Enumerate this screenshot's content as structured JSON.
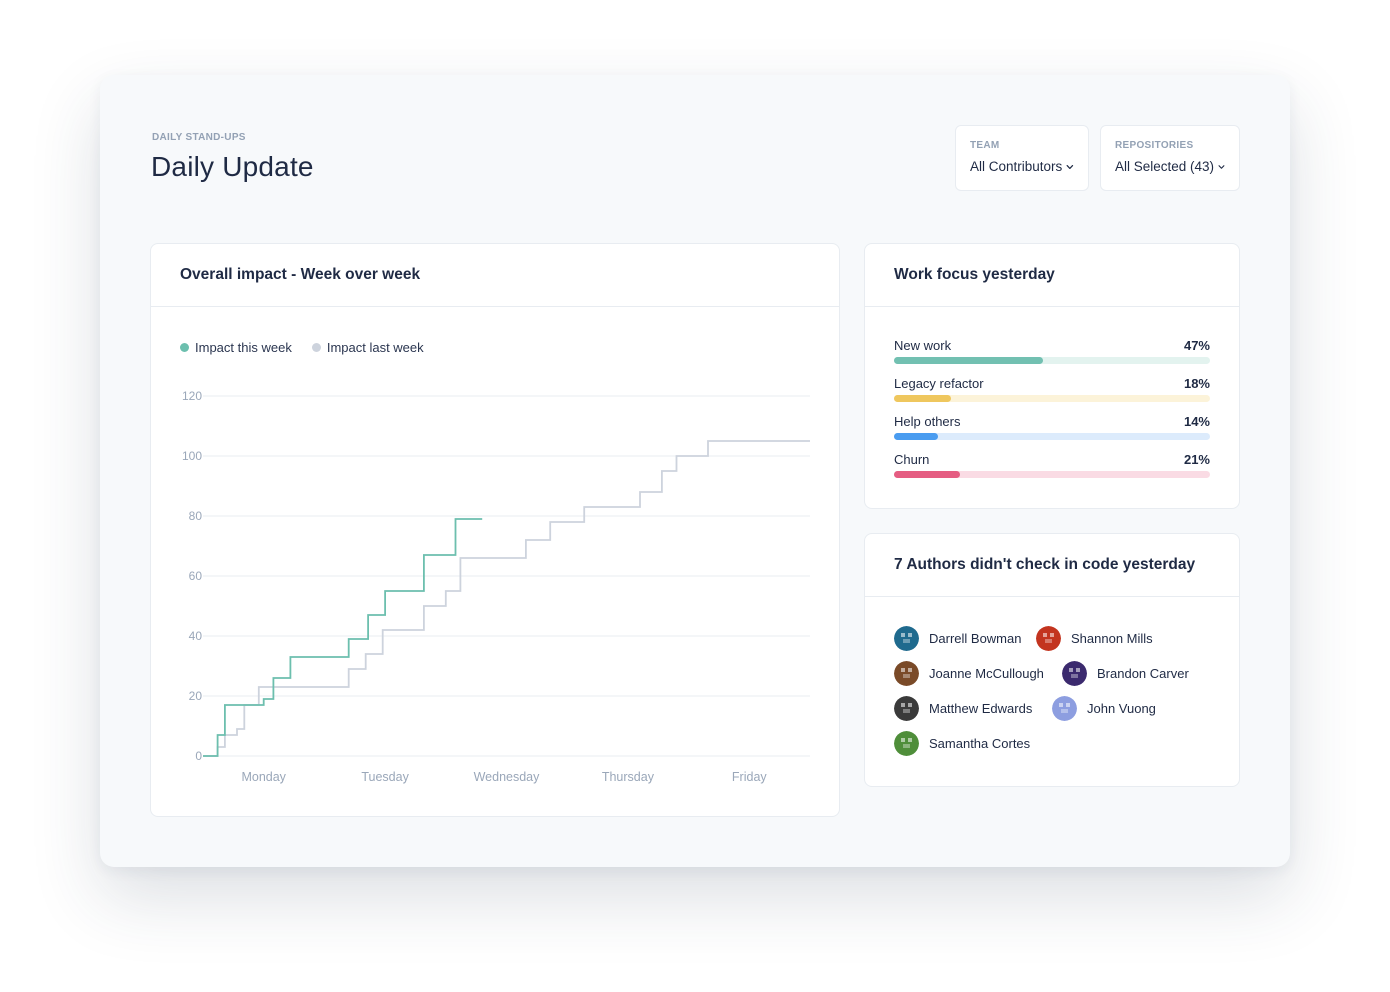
{
  "header": {
    "eyebrow": "DAILY STAND-UPS",
    "title": "Daily Update"
  },
  "filters": {
    "team": {
      "label": "TEAM",
      "value": "All Contributors"
    },
    "repositories": {
      "label": "REPOSITORIES",
      "value": "All Selected (43)"
    }
  },
  "impact_card": {
    "title": "Overall impact - Week over week",
    "legend": [
      {
        "label": "Impact this week",
        "color": "#6cbfae"
      },
      {
        "label": "Impact last week",
        "color": "#cdd3dd"
      }
    ]
  },
  "chart_data": {
    "type": "line",
    "step": true,
    "title": "Overall impact - Week over week",
    "x_categories": [
      "Monday",
      "Tuesday",
      "Wednesday",
      "Thursday",
      "Friday"
    ],
    "xlim_days": [
      0,
      5
    ],
    "ylim": [
      0,
      120
    ],
    "yticks": [
      0,
      20,
      40,
      60,
      80,
      100,
      120
    ],
    "grid": true,
    "legend_position": "top-left",
    "series": [
      {
        "name": "Impact this week",
        "color": "#6cbfae",
        "points": [
          [
            0.0,
            0
          ],
          [
            0.12,
            0
          ],
          [
            0.12,
            7
          ],
          [
            0.18,
            7
          ],
          [
            0.18,
            17
          ],
          [
            0.5,
            17
          ],
          [
            0.5,
            19
          ],
          [
            0.58,
            19
          ],
          [
            0.58,
            26
          ],
          [
            0.72,
            26
          ],
          [
            0.72,
            33
          ],
          [
            1.2,
            33
          ],
          [
            1.2,
            39
          ],
          [
            1.36,
            39
          ],
          [
            1.36,
            47
          ],
          [
            1.5,
            47
          ],
          [
            1.5,
            55
          ],
          [
            1.82,
            55
          ],
          [
            1.82,
            67
          ],
          [
            2.08,
            67
          ],
          [
            2.08,
            79
          ],
          [
            2.3,
            79
          ]
        ]
      },
      {
        "name": "Impact last week",
        "color": "#cdd3dd",
        "points": [
          [
            0.0,
            0
          ],
          [
            0.12,
            0
          ],
          [
            0.12,
            3
          ],
          [
            0.18,
            3
          ],
          [
            0.18,
            7
          ],
          [
            0.28,
            7
          ],
          [
            0.28,
            9
          ],
          [
            0.34,
            9
          ],
          [
            0.34,
            17
          ],
          [
            0.46,
            17
          ],
          [
            0.46,
            23
          ],
          [
            1.2,
            23
          ],
          [
            1.2,
            29
          ],
          [
            1.34,
            29
          ],
          [
            1.34,
            34
          ],
          [
            1.48,
            34
          ],
          [
            1.48,
            42
          ],
          [
            1.82,
            42
          ],
          [
            1.82,
            50
          ],
          [
            2.0,
            50
          ],
          [
            2.0,
            55
          ],
          [
            2.12,
            55
          ],
          [
            2.12,
            66
          ],
          [
            2.66,
            66
          ],
          [
            2.66,
            72
          ],
          [
            2.86,
            72
          ],
          [
            2.86,
            78
          ],
          [
            3.14,
            78
          ],
          [
            3.14,
            83
          ],
          [
            3.6,
            83
          ],
          [
            3.6,
            88
          ],
          [
            3.78,
            88
          ],
          [
            3.78,
            95
          ],
          [
            3.9,
            95
          ],
          [
            3.9,
            100
          ],
          [
            4.16,
            100
          ],
          [
            4.16,
            105
          ],
          [
            5.0,
            105
          ]
        ]
      }
    ]
  },
  "focus_card": {
    "title": "Work focus yesterday",
    "items": [
      {
        "label": "New work",
        "percent_label": "47%",
        "value": 0.47,
        "color": "#72c0b1",
        "track": "#e3f3ef"
      },
      {
        "label": "Legacy refactor",
        "percent_label": "18%",
        "value": 0.18,
        "color": "#efc75e",
        "track": "#fcf3d9"
      },
      {
        "label": "Help others",
        "percent_label": "14%",
        "value": 0.14,
        "color": "#4a9cf0",
        "track": "#dcebfc"
      },
      {
        "label": "Churn",
        "percent_label": "21%",
        "value": 0.21,
        "color": "#e55d82",
        "track": "#fadbe4"
      }
    ]
  },
  "authors_card": {
    "title": "7 Authors didn't check in code yesterday",
    "authors": [
      {
        "name": "Darrell Bowman",
        "avatar_icon": "pixel-invader-avatar-icon",
        "color": "#1f6a8e"
      },
      {
        "name": "Shannon Mills",
        "avatar_icon": "pixel-mushroom-avatar-icon",
        "color": "#c3341f"
      },
      {
        "name": "Joanne McCullough",
        "avatar_icon": "pixel-robot-avatar-icon",
        "color": "#7a4a28"
      },
      {
        "name": "Brandon Carver",
        "avatar_icon": "pixel-alien-avatar-icon",
        "color": "#3b2a6e"
      },
      {
        "name": "Matthew Edwards",
        "avatar_icon": "photo-avatar-icon",
        "color": "#3a3a3a"
      },
      {
        "name": "John Vuong",
        "avatar_icon": "identicon-avatar-icon",
        "color": "#8d9ee0"
      },
      {
        "name": "Samantha Cortes",
        "avatar_icon": "frog-avatar-icon",
        "color": "#4f8e3a"
      }
    ]
  }
}
